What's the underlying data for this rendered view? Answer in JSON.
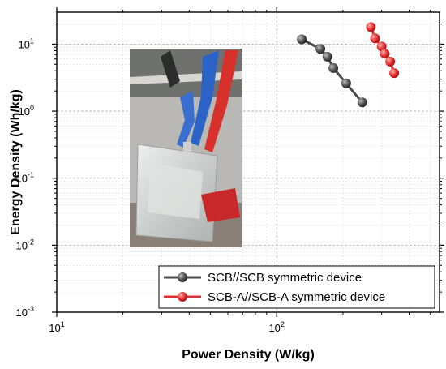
{
  "chart_data": {
    "type": "scatter",
    "xlabel": "Power Density (W/kg)",
    "ylabel": "Energy Density (Wh/kg)",
    "xscale": "log",
    "yscale": "log",
    "xlim": [
      10,
      550
    ],
    "ylim": [
      0.001,
      30
    ],
    "x_ticks": [
      {
        "value": 10,
        "base": "10",
        "exp": "1"
      },
      {
        "value": 100,
        "base": "10",
        "exp": "2"
      }
    ],
    "y_ticks": [
      {
        "value": 0.001,
        "base": "10",
        "exp": "-3"
      },
      {
        "value": 0.01,
        "base": "10",
        "exp": "-2"
      },
      {
        "value": 0.1,
        "base": "10",
        "exp": "-1"
      },
      {
        "value": 1,
        "base": "10",
        "exp": "0"
      },
      {
        "value": 10,
        "base": "10",
        "exp": "1"
      }
    ],
    "grid": true,
    "legend_position": "bottom-right",
    "inset_photo": "pouch cell device connected to red and blue alligator clips",
    "series": [
      {
        "name": "SCB//SCB symmetric device",
        "color": "#4a4a4a",
        "points": [
          {
            "x": 130,
            "y": 11.8
          },
          {
            "x": 158,
            "y": 8.5
          },
          {
            "x": 170,
            "y": 6.5
          },
          {
            "x": 181,
            "y": 4.4
          },
          {
            "x": 207,
            "y": 2.6
          },
          {
            "x": 245,
            "y": 1.35
          }
        ]
      },
      {
        "name": "SCB-A//SCB-A symmetric device",
        "color": "#e03030",
        "points": [
          {
            "x": 268,
            "y": 18
          },
          {
            "x": 280,
            "y": 12.2
          },
          {
            "x": 300,
            "y": 9.2
          },
          {
            "x": 310,
            "y": 7.2
          },
          {
            "x": 328,
            "y": 5.5
          },
          {
            "x": 342,
            "y": 3.7
          }
        ]
      }
    ]
  }
}
